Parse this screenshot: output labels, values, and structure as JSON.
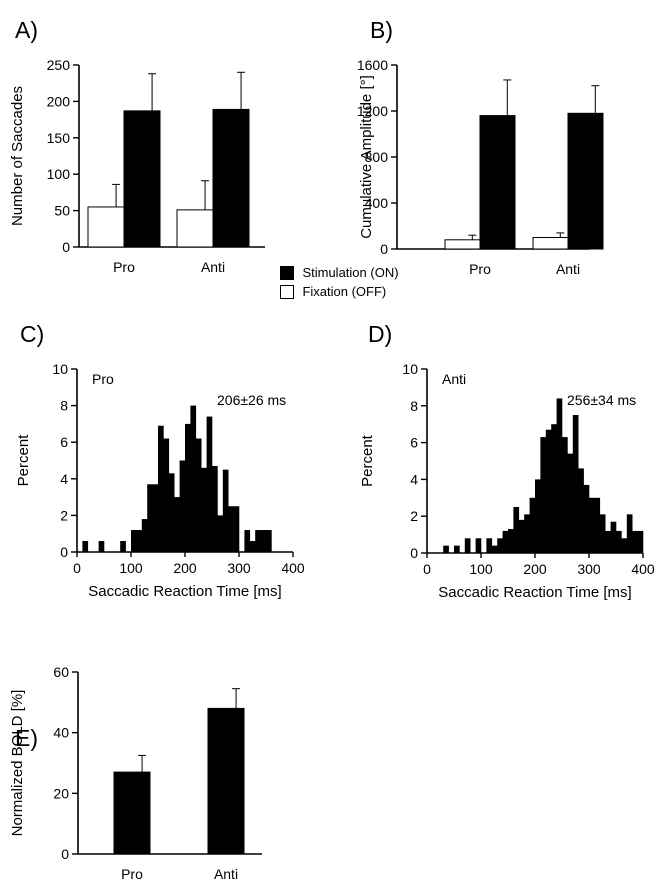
{
  "colors": {
    "on": "#000000",
    "off": "#ffffff",
    "axis": "#000000"
  },
  "legend": {
    "on_label": "Stimulation (ON)",
    "off_label": "Fixation (OFF)"
  },
  "chart_data": [
    {
      "id": "A",
      "panel_label": "A)",
      "type": "bar",
      "categories": [
        "Pro",
        "Anti"
      ],
      "series": [
        {
          "name": "Fixation (OFF)",
          "values": [
            55,
            51
          ],
          "errors": [
            31,
            40
          ]
        },
        {
          "name": "Stimulation (ON)",
          "values": [
            187,
            189
          ],
          "errors": [
            51,
            51
          ]
        }
      ],
      "ylabel": "Number of Saccades",
      "ylim": [
        0,
        250
      ],
      "yticks": [
        0,
        50,
        100,
        150,
        200,
        250
      ]
    },
    {
      "id": "B",
      "panel_label": "B)",
      "type": "bar",
      "categories": [
        "Pro",
        "Anti"
      ],
      "series": [
        {
          "name": "Fixation (OFF)",
          "values": [
            80,
            100
          ],
          "errors": [
            40,
            40
          ]
        },
        {
          "name": "Stimulation (ON)",
          "values": [
            1160,
            1180
          ],
          "errors": [
            310,
            240
          ]
        }
      ],
      "ylabel": "Cumulative Amplitude [°]",
      "ylim": [
        0,
        1600
      ],
      "yticks": [
        0,
        400,
        800,
        1200,
        1600
      ]
    },
    {
      "id": "C",
      "panel_label": "C)",
      "type": "bar",
      "subtype": "histogram",
      "condition_label": "Pro",
      "annotation": "206±26  ms",
      "bin_width": 10,
      "bins": [
        [
          10,
          0.6
        ],
        [
          40,
          0.6
        ],
        [
          80,
          0.6
        ],
        [
          100,
          1.2
        ],
        [
          110,
          1.2
        ],
        [
          120,
          1.8
        ],
        [
          130,
          3.7
        ],
        [
          140,
          3.7
        ],
        [
          150,
          6.9
        ],
        [
          160,
          6.2
        ],
        [
          170,
          4.3
        ],
        [
          180,
          3.0
        ],
        [
          190,
          5.0
        ],
        [
          200,
          7.0
        ],
        [
          210,
          8.0
        ],
        [
          220,
          6.2
        ],
        [
          230,
          4.6
        ],
        [
          240,
          7.4
        ],
        [
          250,
          4.7
        ],
        [
          260,
          2.0
        ],
        [
          270,
          4.5
        ],
        [
          280,
          2.5
        ],
        [
          290,
          2.5
        ],
        [
          310,
          1.2
        ],
        [
          320,
          0.6
        ],
        [
          330,
          1.2
        ],
        [
          340,
          1.2
        ],
        [
          350,
          1.2
        ]
      ],
      "xlabel": "Saccadic Reaction Time [ms]",
      "ylabel": "Percent",
      "xlim": [
        0,
        400
      ],
      "xticks": [
        0,
        100,
        200,
        300,
        400
      ],
      "ylim": [
        0,
        10
      ],
      "yticks": [
        0,
        2,
        4,
        6,
        8,
        10
      ]
    },
    {
      "id": "D",
      "panel_label": "D)",
      "type": "bar",
      "subtype": "histogram",
      "condition_label": "Anti",
      "annotation": "256±34  ms",
      "bin_width": 10,
      "bins": [
        [
          30,
          0.4
        ],
        [
          50,
          0.4
        ],
        [
          70,
          0.8
        ],
        [
          90,
          0.8
        ],
        [
          110,
          0.8
        ],
        [
          120,
          0.4
        ],
        [
          130,
          0.8
        ],
        [
          140,
          1.2
        ],
        [
          150,
          1.3
        ],
        [
          160,
          2.5
        ],
        [
          170,
          1.8
        ],
        [
          180,
          2.1
        ],
        [
          190,
          3.0
        ],
        [
          200,
          4.0
        ],
        [
          210,
          6.3
        ],
        [
          220,
          6.7
        ],
        [
          230,
          7.0
        ],
        [
          240,
          8.4
        ],
        [
          250,
          6.3
        ],
        [
          260,
          5.4
        ],
        [
          270,
          7.5
        ],
        [
          280,
          4.6
        ],
        [
          290,
          3.7
        ],
        [
          300,
          3.0
        ],
        [
          310,
          3.0
        ],
        [
          320,
          2.1
        ],
        [
          330,
          1.2
        ],
        [
          340,
          1.7
        ],
        [
          350,
          1.2
        ],
        [
          360,
          0.8
        ],
        [
          370,
          2.1
        ],
        [
          380,
          1.2
        ],
        [
          390,
          1.2
        ]
      ],
      "xlabel": "Saccadic Reaction Time [ms]",
      "ylabel": "Percent",
      "xlim": [
        0,
        400
      ],
      "xticks": [
        0,
        100,
        200,
        300,
        400
      ],
      "ylim": [
        0,
        10
      ],
      "yticks": [
        0,
        2,
        4,
        6,
        8,
        10
      ]
    },
    {
      "id": "E",
      "panel_label": "E)",
      "type": "bar",
      "categories": [
        "Pro",
        "Anti"
      ],
      "series": [
        {
          "name": "",
          "values": [
            27,
            48
          ],
          "errors": [
            5.5,
            6.5
          ]
        }
      ],
      "ylabel": "Normalized BOLD [%]",
      "ylim": [
        0,
        60
      ],
      "yticks": [
        0,
        20,
        40,
        60
      ]
    }
  ]
}
